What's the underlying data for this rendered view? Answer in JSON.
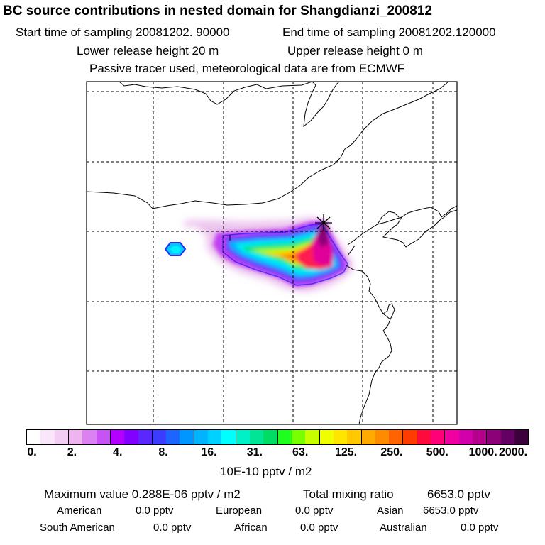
{
  "header": {
    "title": "BC  source contributions in nested domain for Shangdianzi_200812",
    "start_label": "Start time of sampling 20081202. 90000",
    "end_label": "End time of sampling 20081202.120000",
    "lower_label": "Lower release height   20 m",
    "upper_label": "Upper release height    0 m",
    "tracer_label": "Passive tracer used, meteorological data are from ECMWF"
  },
  "map": {
    "station_marker": "star-marker-icon",
    "plume_colors": [
      "#ffffff",
      "#f7e0f7",
      "#f0b0f0",
      "#e070ee",
      "#b000ff",
      "#6020ff",
      "#2060ff",
      "#00a0ff",
      "#00ffff",
      "#00e0a0",
      "#30ff30",
      "#c0ff00",
      "#ffe000",
      "#ffa000",
      "#ff5000",
      "#ff0060",
      "#e000a0",
      "#a00080",
      "#500040"
    ]
  },
  "colorbar": {
    "ticks": [
      "0.",
      "2.",
      "4.",
      "8.",
      "16.",
      "31.",
      "63.",
      "125.",
      "250.",
      "500.",
      "1000.",
      "2000."
    ],
    "unit": "10E-10 pptv / m2",
    "colors": [
      "#ffffff",
      "#fae6fa",
      "#f4cdf4",
      "#efb3ef",
      "#dc82f0",
      "#c853f5",
      "#b400ff",
      "#8200ff",
      "#5a28ff",
      "#3c3cff",
      "#1e64ff",
      "#0096ff",
      "#00b4ff",
      "#00d2ff",
      "#00ffff",
      "#00f0c8",
      "#00e696",
      "#00dc64",
      "#1eff1e",
      "#78ff00",
      "#c8ff00",
      "#f0ff00",
      "#ffe600",
      "#ffc800",
      "#ffaa00",
      "#ff8c00",
      "#ff6400",
      "#ff3c00",
      "#ff0a3c",
      "#ff0078",
      "#f000a0",
      "#d200aa",
      "#b4008c",
      "#8c0078",
      "#640064",
      "#3c003c"
    ]
  },
  "stats": {
    "max_label": "Maximum value  0.288E-06 pptv / m2",
    "total_label": "Total mixing ratio",
    "total_value": "6653.0 pptv"
  },
  "regions": [
    {
      "name": "American",
      "value": "0.0 pptv"
    },
    {
      "name": "European",
      "value": "0.0 pptv"
    },
    {
      "name": "Asian",
      "value": "6653.0 pptv"
    },
    {
      "name": "South American",
      "value": "0.0 pptv"
    },
    {
      "name": "African",
      "value": "0.0 pptv"
    },
    {
      "name": "Australian",
      "value": "0.0 pptv"
    }
  ]
}
